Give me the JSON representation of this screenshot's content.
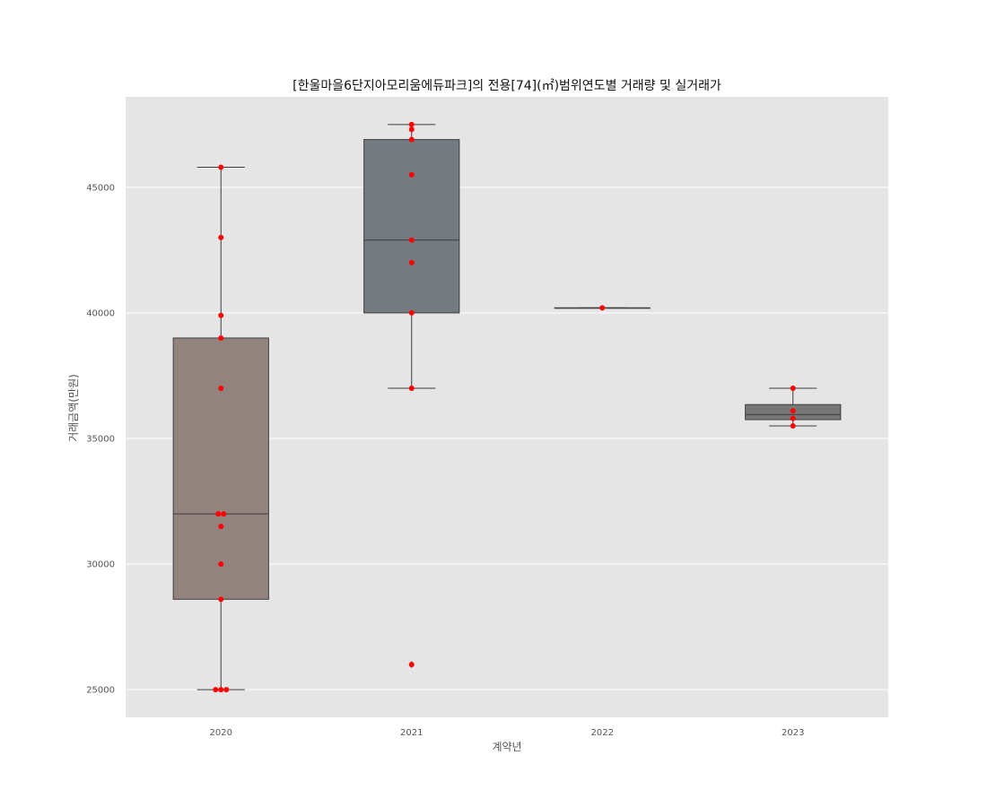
{
  "chart_data": {
    "type": "box",
    "title": "[한울마을6단지아모리움에듀파크]의 전용[74](㎡)범위연도별 거래량 및 실거래가",
    "xlabel": "계약년",
    "ylabel": "거래금액(만원)",
    "ylim": [
      23900,
      48600
    ],
    "yticks": [
      25000,
      30000,
      35000,
      40000,
      45000
    ],
    "grid": true,
    "categories": [
      "2020",
      "2021",
      "2022",
      "2023"
    ],
    "boxes": [
      {
        "category": "2020",
        "whisker_low": 25000,
        "q1": 28600,
        "median": 32000,
        "q3": 39000,
        "whisker_high": 45800,
        "outliers": [],
        "color": "#93837f"
      },
      {
        "category": "2021",
        "whisker_low": 37000,
        "q1": 40000,
        "median": 42900,
        "q3": 46900,
        "whisker_high": 47500,
        "outliers": [
          26000
        ],
        "color": "#737a80"
      },
      {
        "category": "2022",
        "whisker_low": 40200,
        "q1": 40200,
        "median": 40200,
        "q3": 40200,
        "whisker_high": 40200,
        "outliers": [],
        "color": "#737373"
      },
      {
        "category": "2023",
        "whisker_low": 35500,
        "q1": 35750,
        "median": 35950,
        "q3": 36350,
        "whisker_high": 37000,
        "outliers": [],
        "color": "#777777"
      }
    ],
    "points": [
      {
        "category": "2020",
        "values": [
          45800,
          43000,
          39900,
          39000,
          37000,
          32000,
          32000,
          31500,
          30000,
          28600,
          25000,
          25000,
          25000
        ]
      },
      {
        "category": "2021",
        "values": [
          47500,
          47300,
          46900,
          45500,
          42900,
          42000,
          40000,
          37000,
          26000
        ]
      },
      {
        "category": "2022",
        "values": [
          40200
        ]
      },
      {
        "category": "2023",
        "values": [
          37000,
          36100,
          35800,
          35500
        ]
      }
    ],
    "point_color": "#ff0000",
    "background_color": "#e5e5e5",
    "grid_color": "#ffffff"
  }
}
